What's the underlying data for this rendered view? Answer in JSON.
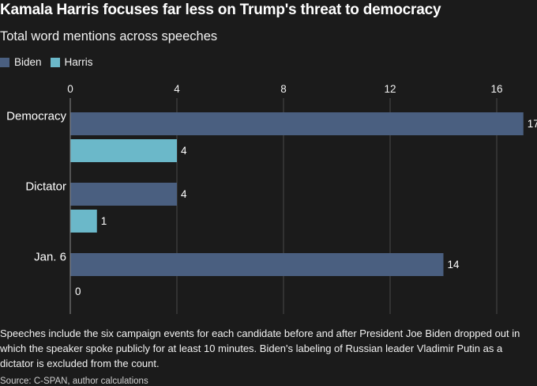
{
  "title": "Kamala Harris focuses far less on Trump's threat to democracy",
  "subtitle": "Total word mentions across speeches",
  "legend": [
    {
      "name": "Biden",
      "color": "#4a5f80"
    },
    {
      "name": "Harris",
      "color": "#6bb8c9"
    }
  ],
  "chart_data": {
    "type": "bar",
    "orientation": "horizontal",
    "title": "Kamala Harris focuses far less on Trump's threat to democracy",
    "subtitle": "Total word mentions across speeches",
    "categories": [
      "Democracy",
      "Dictator",
      "Jan. 6"
    ],
    "series": [
      {
        "name": "Biden",
        "color": "#4a5f80",
        "values": [
          17,
          4,
          14
        ]
      },
      {
        "name": "Harris",
        "color": "#6bb8c9",
        "values": [
          4,
          1,
          0
        ]
      }
    ],
    "xticks": [
      0,
      4,
      8,
      12,
      16
    ],
    "xlim": [
      0,
      17
    ],
    "grid": true,
    "legend_position": "top-left"
  },
  "note": "Speeches include the six campaign events for each candidate before and after President Joe Biden dropped out in which the speaker spoke publicly for at least 10 minutes. Biden's labeling of Russian leader Vladimir Putin as a dictator is excluded from the count.",
  "source": "Source: C-SPAN, author calculations"
}
